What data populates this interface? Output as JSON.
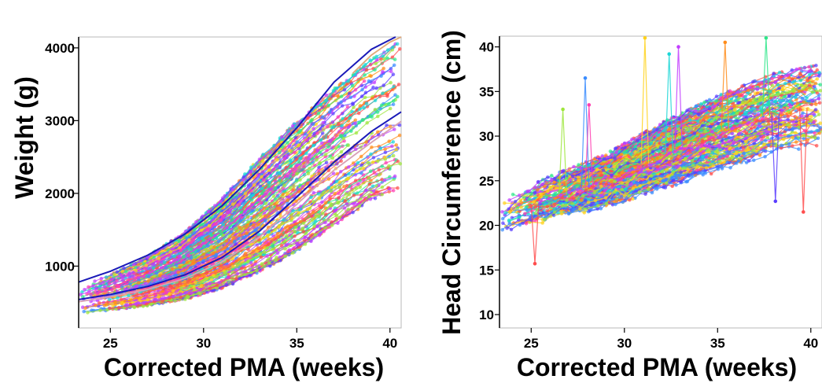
{
  "chart_data": [
    {
      "type": "line",
      "title": "",
      "xlabel": "Corrected PMA (weeks)",
      "ylabel": "Weight (g)",
      "xlim": [
        23.3,
        40.6
      ],
      "ylim": [
        150,
        4150
      ],
      "xticks": [
        25,
        30,
        35,
        40
      ],
      "yticks": [
        1000,
        2000,
        3000,
        4000
      ],
      "grid": false,
      "legend": "none",
      "individual_trajectories": {
        "description_count": "many overlapping colored infant growth trajectories (scatter points joined by lines)",
        "band_lower": {
          "x": [
            23.5,
            25,
            27,
            29,
            31,
            33,
            35,
            37,
            39,
            40.5
          ],
          "y": [
            360,
            400,
            470,
            560,
            720,
            950,
            1250,
            1600,
            1950,
            2100
          ]
        },
        "band_upper": {
          "x": [
            23.5,
            25,
            27,
            29,
            31,
            33,
            35,
            37,
            39,
            40.5
          ],
          "y": [
            720,
            870,
            1120,
            1450,
            1900,
            2450,
            2950,
            3400,
            3800,
            4050
          ]
        }
      },
      "series": [
        {
          "color": "#1a1ab8",
          "x": [
            23.3,
            25,
            27,
            29,
            31,
            33,
            35,
            37,
            39,
            40.3
          ],
          "y": [
            780,
            930,
            1150,
            1440,
            1830,
            2330,
            2900,
            3530,
            3980,
            4180
          ]
        },
        {
          "color": "#1a1ab8",
          "x": [
            23.3,
            25,
            27,
            29,
            31,
            33,
            35,
            37,
            39,
            40.6
          ],
          "y": [
            540,
            610,
            720,
            880,
            1120,
            1480,
            1950,
            2430,
            2850,
            3120
          ]
        },
        {
          "color": "#d8a0b4",
          "x": [
            23.3,
            25,
            27,
            29,
            31,
            33,
            35,
            37,
            39,
            40.6
          ],
          "y": [
            510,
            580,
            680,
            830,
            1060,
            1400,
            1850,
            2320,
            2700,
            2990
          ]
        },
        {
          "color": "#e0a878",
          "x": [
            38,
            39,
            40,
            40.6
          ],
          "y": [
            3650,
            3900,
            4080,
            4150
          ]
        }
      ],
      "colors": [
        "#ff4d4d",
        "#ff8c1a",
        "#ffd21a",
        "#9ee63c",
        "#2ee68a",
        "#1ad6d6",
        "#3a8cff",
        "#5a3dff",
        "#c23dff",
        "#ff3db0"
      ]
    },
    {
      "type": "line",
      "title": "",
      "xlabel": "Corrected PMA (weeks)",
      "ylabel": "Head Circumference (cm)",
      "xlim": [
        23.3,
        40.6
      ],
      "ylim": [
        8.5,
        41.2
      ],
      "xticks": [
        25,
        30,
        35,
        40
      ],
      "yticks": [
        10,
        15,
        20,
        25,
        30,
        35,
        40
      ],
      "grid": false,
      "legend": "none",
      "individual_trajectories": {
        "description_count": "many overlapping colored infant head circumference trajectories (scatter points joined by lines)",
        "band_lower": {
          "x": [
            23.5,
            26,
            29,
            32,
            35,
            38,
            40.5
          ],
          "y": [
            19.5,
            21,
            22.5,
            24.5,
            26.5,
            28.5,
            29.5
          ]
        },
        "band_upper": {
          "x": [
            23.5,
            26,
            29,
            32,
            35,
            38,
            40.5
          ],
          "y": [
            22.5,
            25,
            27.5,
            31,
            34,
            36.5,
            37.5
          ]
        }
      },
      "outlier_spikes": [
        {
          "x": 25.2,
          "y": 15.7
        },
        {
          "x": 26.7,
          "y": 33
        },
        {
          "x": 27.9,
          "y": 36.5
        },
        {
          "x": 28.1,
          "y": 33.5
        },
        {
          "x": 31.1,
          "y": 41
        },
        {
          "x": 32.4,
          "y": 39.2
        },
        {
          "x": 32.9,
          "y": 40
        },
        {
          "x": 35.4,
          "y": 40.5
        },
        {
          "x": 37.6,
          "y": 41
        },
        {
          "x": 38.1,
          "y": 22.7
        },
        {
          "x": 39.6,
          "y": 21.5
        }
      ]
    }
  ]
}
